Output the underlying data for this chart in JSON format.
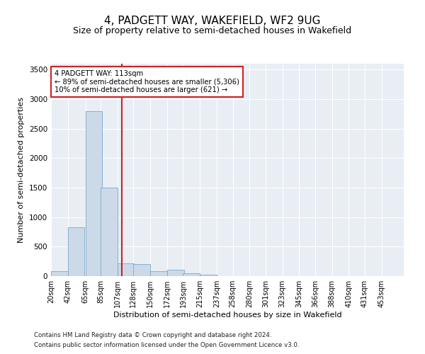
{
  "title": "4, PADGETT WAY, WAKEFIELD, WF2 9UG",
  "subtitle": "Size of property relative to semi-detached houses in Wakefield",
  "xlabel": "Distribution of semi-detached houses by size in Wakefield",
  "ylabel": "Number of semi-detached properties",
  "property_size": 113,
  "pct_smaller": 89,
  "n_smaller": "5,306",
  "pct_larger": 10,
  "n_larger": "621",
  "bar_color": "#ccd9e8",
  "bar_edge_color": "#7aaac8",
  "vline_color": "#cc2222",
  "annotation_box_edgecolor": "#cc2222",
  "footer_line1": "Contains HM Land Registry data © Crown copyright and database right 2024.",
  "footer_line2": "Contains public sector information licensed under the Open Government Licence v3.0.",
  "bin_labels": [
    "20sqm",
    "42sqm",
    "65sqm",
    "85sqm",
    "107sqm",
    "128sqm",
    "150sqm",
    "172sqm",
    "193sqm",
    "215sqm",
    "237sqm",
    "258sqm",
    "280sqm",
    "301sqm",
    "323sqm",
    "345sqm",
    "366sqm",
    "388sqm",
    "410sqm",
    "431sqm",
    "453sqm"
  ],
  "bin_left_edges": [
    20,
    42,
    65,
    85,
    107,
    128,
    150,
    172,
    193,
    215,
    237,
    258,
    280,
    301,
    323,
    345,
    366,
    388,
    410,
    431,
    453
  ],
  "bin_width": 22,
  "bar_heights": [
    80,
    830,
    2800,
    1500,
    220,
    210,
    90,
    110,
    50,
    25,
    5,
    0,
    0,
    0,
    0,
    0,
    0,
    0,
    0,
    0,
    0
  ],
  "ylim": [
    0,
    3600
  ],
  "yticks": [
    0,
    500,
    1000,
    1500,
    2000,
    2500,
    3000,
    3500
  ],
  "background_color": "#e8eef4",
  "grid_color": "#ffffff",
  "title_fontsize": 11,
  "subtitle_fontsize": 9,
  "axis_label_fontsize": 8,
  "tick_fontsize": 7
}
